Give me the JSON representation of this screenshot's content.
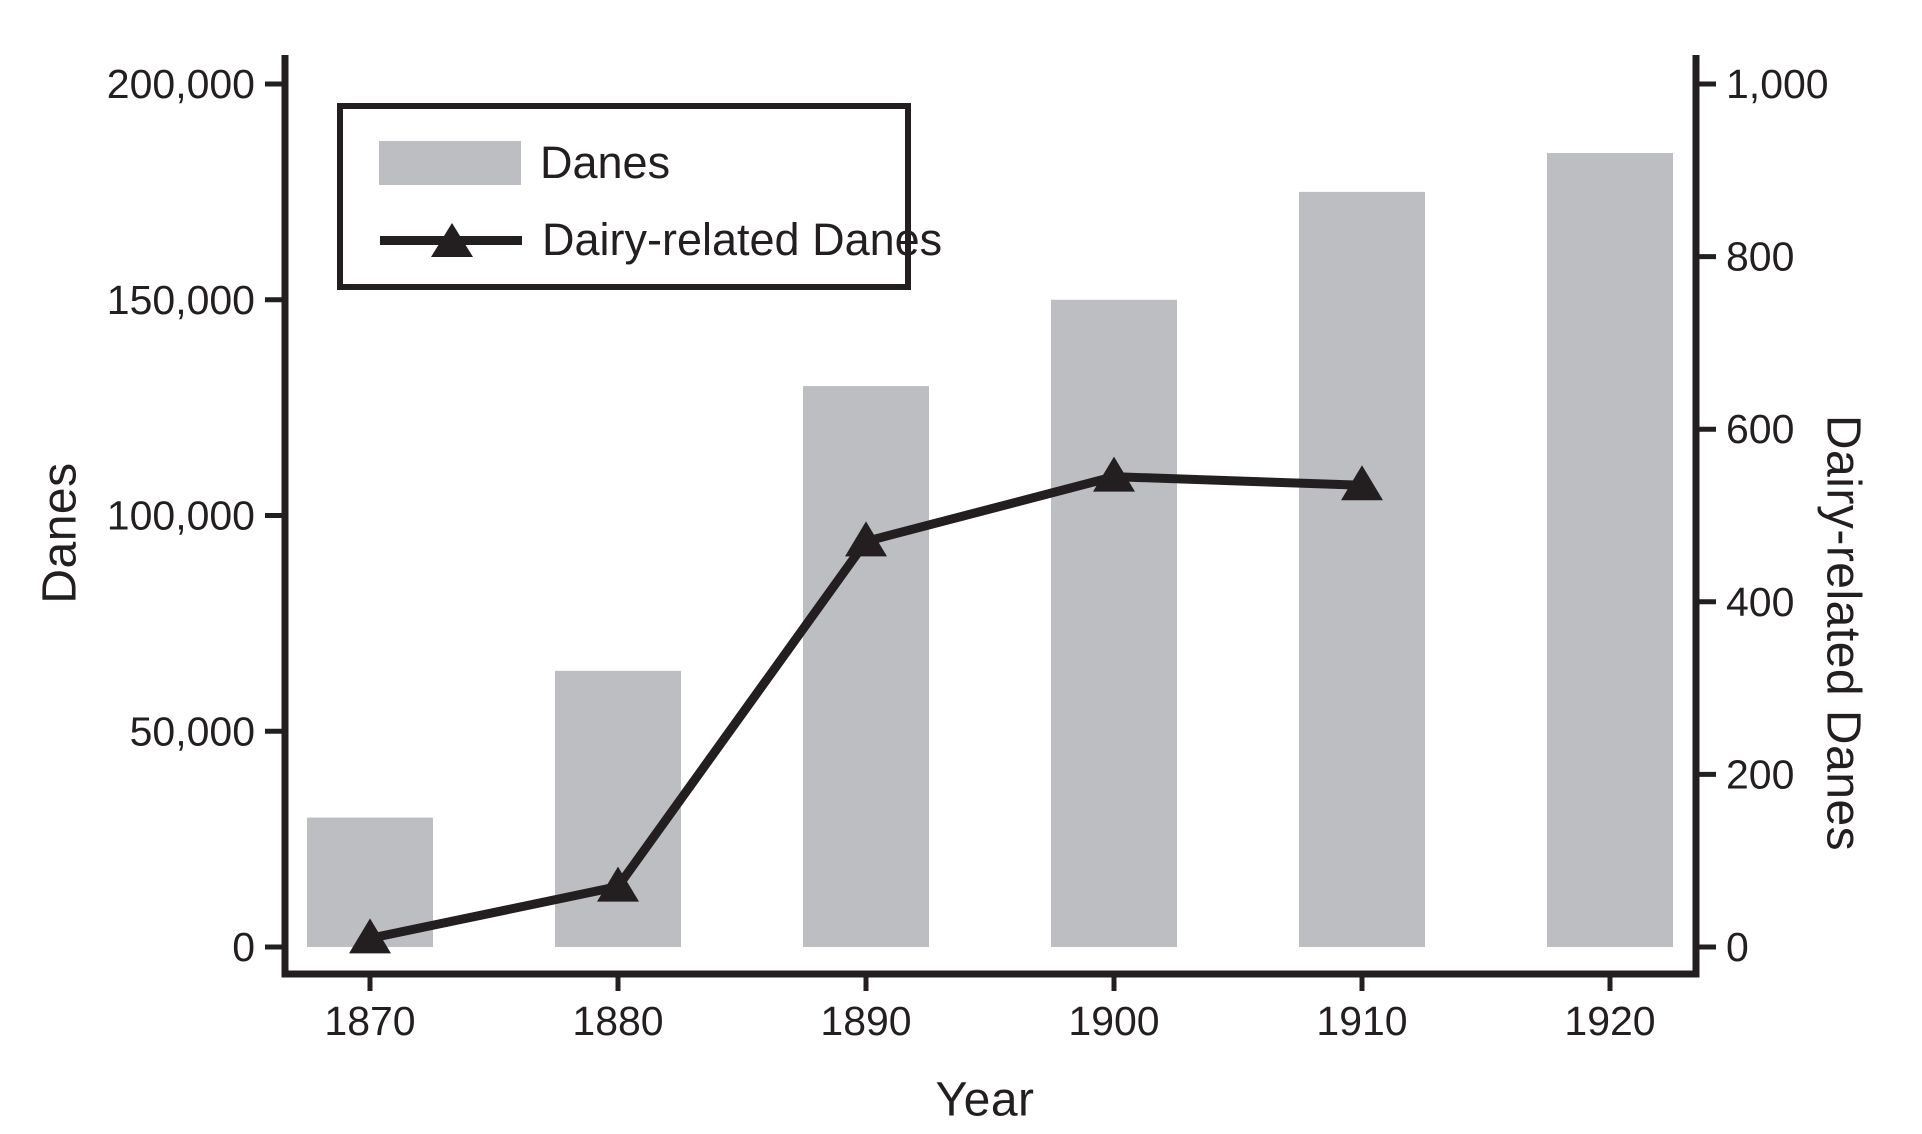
{
  "figure": {
    "background": "#ffffff",
    "text_color": "#231f20",
    "bar_color": "#bcbec1",
    "line_color": "#231f20"
  },
  "chart_data": {
    "type": "bar",
    "subtype": "bar-and-line-dual-axis",
    "categories": [
      "1870",
      "1880",
      "1890",
      "1900",
      "1910",
      "1920"
    ],
    "series": [
      {
        "name": "Danes",
        "type": "bar",
        "axis": "left",
        "color": "#bcbec1",
        "values": [
          30000,
          64000,
          130000,
          150000,
          175000,
          184000
        ]
      },
      {
        "name": "Dairy-related Danes",
        "type": "line",
        "axis": "right",
        "color": "#231f20",
        "marker": "triangle-up",
        "values": [
          10,
          70,
          470,
          545,
          535,
          null
        ]
      }
    ],
    "title": "",
    "xlabel": "Year",
    "ylabel_left": "Danes",
    "ylabel_right": "Dairy-related Danes",
    "ylim_left": [
      0,
      200000
    ],
    "ylim_right": [
      0,
      1000
    ],
    "yticks_left": {
      "values": [
        0,
        50000,
        100000,
        150000,
        200000
      ],
      "labels": [
        "0",
        "50,000",
        "100,000",
        "150,000",
        "200,000"
      ]
    },
    "yticks_right": {
      "values": [
        0,
        200,
        400,
        600,
        800,
        1000
      ],
      "labels": [
        "0",
        "200",
        "400",
        "600",
        "800",
        "1,000"
      ]
    },
    "grid": false,
    "legend_position": "top-left-inside"
  },
  "legend": {
    "items": [
      {
        "label": "Danes",
        "sample": "gray-bar-swatch"
      },
      {
        "label": "Dairy-related Danes",
        "sample": "black-line-with-triangle-marker"
      }
    ]
  }
}
